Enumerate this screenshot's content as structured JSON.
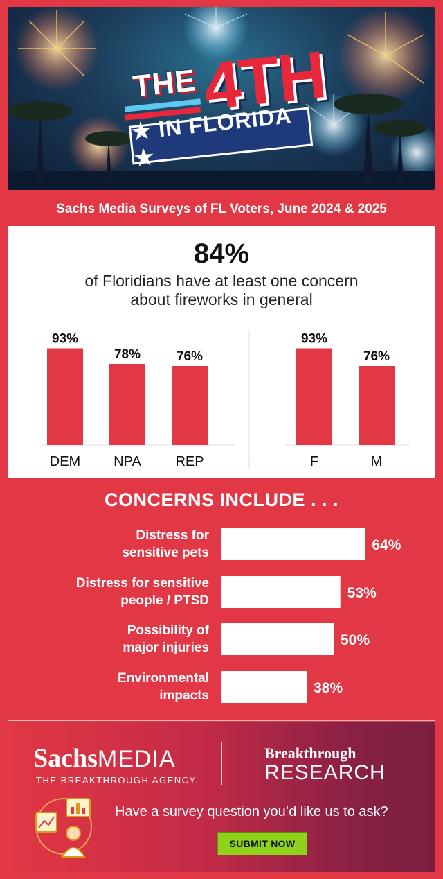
{
  "hero": {
    "title_the": "THE",
    "title_4th": "4TH",
    "title_in_florida": "★ IN FLORIDA ★"
  },
  "subtitle": "Sachs Media Surveys of FL Voters, June 2024 & 2025",
  "headline": {
    "stat": "84%",
    "desc_line1": "of Floridians have at least one concern",
    "desc_line2": "about fireworks in general"
  },
  "concerns_title": "CONCERNS INCLUDE . . .",
  "colors": {
    "accent_red": "#e23744",
    "white": "#ffffff",
    "submit_green": "#8ed21b"
  },
  "chart_data": [
    {
      "type": "bar",
      "group": "party",
      "categories": [
        "DEM",
        "NPA",
        "REP"
      ],
      "values": [
        93,
        78,
        76
      ],
      "labels": [
        "93%",
        "78%",
        "76%"
      ],
      "ylim": [
        0,
        100
      ],
      "grid": false
    },
    {
      "type": "bar",
      "group": "gender",
      "categories": [
        "F",
        "M"
      ],
      "values": [
        93,
        76
      ],
      "labels": [
        "93%",
        "76%"
      ],
      "ylim": [
        0,
        100
      ],
      "grid": false
    },
    {
      "type": "bar",
      "orientation": "horizontal",
      "categories": [
        [
          "Distress for",
          "sensitive pets"
        ],
        [
          "Distress for sensitive",
          "people / PTSD"
        ],
        [
          "Possibility of",
          "major injuries"
        ],
        [
          "Environmental",
          "impacts"
        ]
      ],
      "values": [
        64,
        53,
        50,
        38
      ],
      "labels": [
        "64%",
        "53%",
        "50%",
        "38%"
      ],
      "xlim": [
        0,
        100
      ],
      "grid": false
    }
  ],
  "footer": {
    "sachs_a": "Sachs",
    "sachs_b": "MEDIA",
    "sachs_tagline": "THE BREAKTHROUGH AGENCY.",
    "bt_a": "Breakthrough",
    "bt_b": "RESEARCH",
    "ask": "Have a survey question you’d like us to ask?",
    "submit": "SUBMIT NOW"
  }
}
